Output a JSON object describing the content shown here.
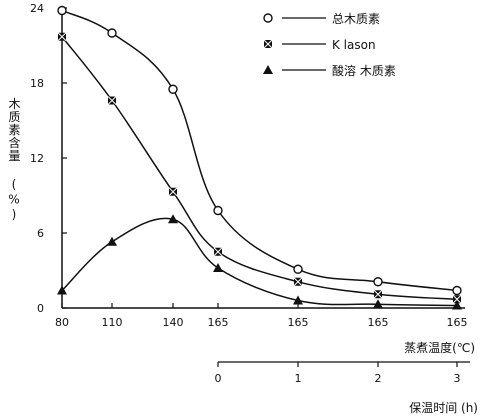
{
  "chart_data": {
    "type": "line",
    "ylabel": "木质素含量 (%)",
    "xlabel": "蒸煮温度(℃)",
    "x2label": "保温时间 (h)",
    "ylim": [
      0,
      24
    ],
    "yticks": [
      "0",
      "6",
      "12",
      "18",
      "24"
    ],
    "ytick_values": [
      0,
      6,
      12,
      18,
      24
    ],
    "categories": [
      "80",
      "110",
      "140",
      "165",
      "165",
      "165",
      "165"
    ],
    "x2ticks": [
      "0",
      "1",
      "2",
      "3"
    ],
    "x2tick_index": [
      3,
      4,
      5,
      6
    ],
    "grid": false,
    "legend_position": "top-right",
    "series": [
      {
        "name": "总木质素",
        "marker": "circle-open",
        "values": [
          23.8,
          22.0,
          17.5,
          7.8,
          3.1,
          2.1,
          1.4
        ]
      },
      {
        "name": "K lason",
        "marker": "square-x",
        "values": [
          21.7,
          16.6,
          9.3,
          4.5,
          2.1,
          1.1,
          0.7
        ]
      },
      {
        "name": "酸溶 木质素",
        "marker": "triangle-filled",
        "values": [
          1.4,
          5.3,
          7.1,
          3.2,
          0.6,
          0.3,
          0.2
        ]
      }
    ]
  }
}
